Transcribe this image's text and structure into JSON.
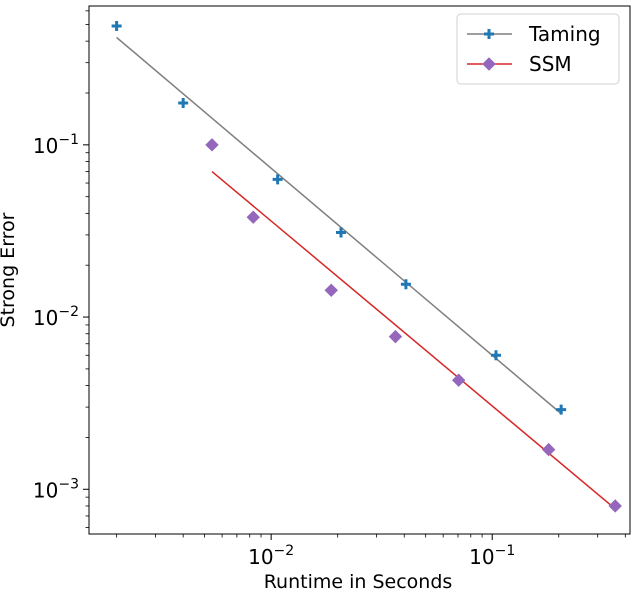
{
  "chart_data": {
    "type": "scatter",
    "xscale": "log",
    "yscale": "log",
    "xlabel": "Runtime in Seconds",
    "ylabel": "Strong Error",
    "xlim": [
      0.0015,
      0.42
    ],
    "ylim": [
      0.00055,
      0.64
    ],
    "x_ticks": [
      {
        "value": 0.01,
        "base": "10",
        "exp": "−2"
      },
      {
        "value": 0.1,
        "base": "10",
        "exp": "−1"
      }
    ],
    "y_ticks": [
      {
        "value": 0.001,
        "base": "10",
        "exp": "−3"
      },
      {
        "value": 0.01,
        "base": "10",
        "exp": "−2"
      },
      {
        "value": 0.1,
        "base": "10",
        "exp": "−1"
      }
    ],
    "legend_position": "top-right",
    "series": [
      {
        "name": "Taming",
        "color": "#1f77b4",
        "fit_color": "#7f7f7f",
        "marker": "plus",
        "points": [
          {
            "x": 0.002,
            "y": 0.49
          },
          {
            "x": 0.004,
            "y": 0.175
          },
          {
            "x": 0.0107,
            "y": 0.063
          },
          {
            "x": 0.0207,
            "y": 0.031
          },
          {
            "x": 0.0407,
            "y": 0.0155
          },
          {
            "x": 0.104,
            "y": 0.006
          },
          {
            "x": 0.205,
            "y": 0.0029
          }
        ],
        "fit": [
          {
            "x": 0.002,
            "y": 0.42
          },
          {
            "x": 0.205,
            "y": 0.00275
          }
        ]
      },
      {
        "name": "SSM",
        "color": "#9467bd",
        "fit_color": "#d62728",
        "marker": "diamond",
        "points": [
          {
            "x": 0.0054,
            "y": 0.1
          },
          {
            "x": 0.0083,
            "y": 0.038
          },
          {
            "x": 0.0187,
            "y": 0.0143
          },
          {
            "x": 0.0365,
            "y": 0.0077
          },
          {
            "x": 0.0705,
            "y": 0.0043
          },
          {
            "x": 0.18,
            "y": 0.0017
          },
          {
            "x": 0.36,
            "y": 0.0008
          }
        ],
        "fit": [
          {
            "x": 0.0054,
            "y": 0.07
          },
          {
            "x": 0.36,
            "y": 0.00077
          }
        ]
      }
    ]
  }
}
